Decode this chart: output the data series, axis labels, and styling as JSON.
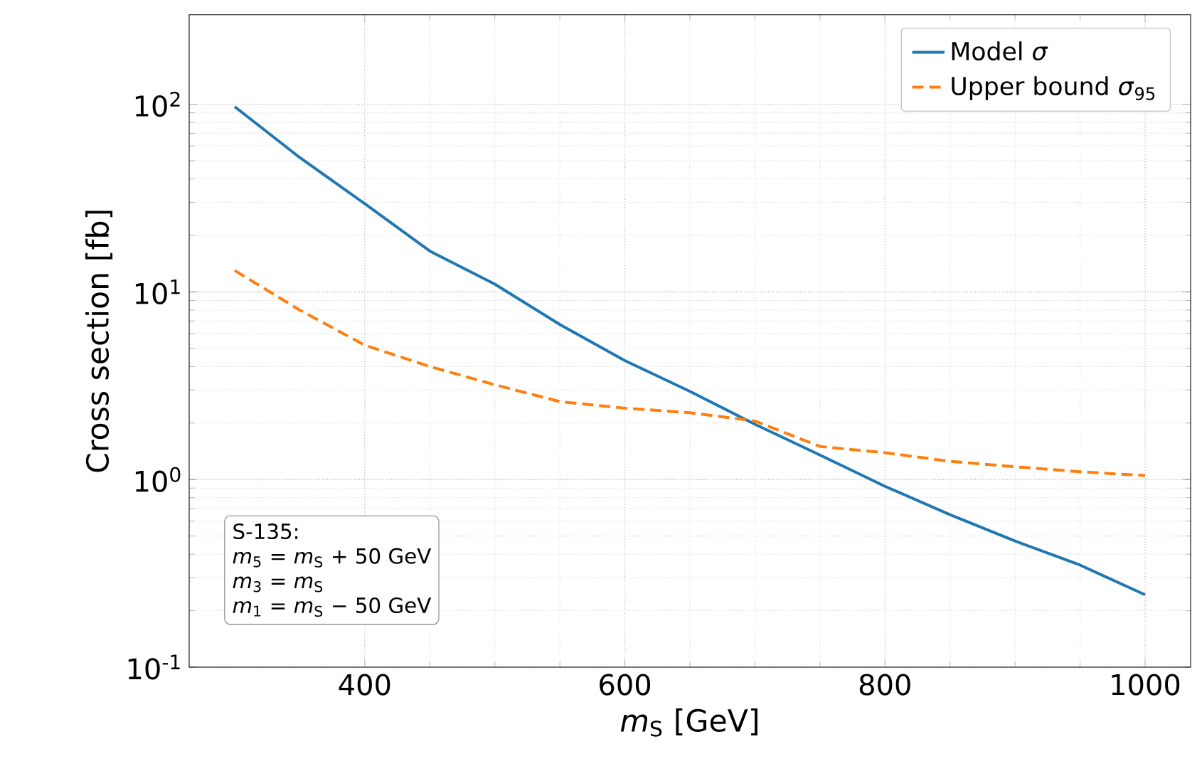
{
  "chart_data": {
    "type": "line",
    "xlabel": "*m*$_{S}$ [GeV]",
    "ylabel": "Cross section [fb]",
    "x": [
      300,
      350,
      400,
      450,
      500,
      550,
      600,
      650,
      700,
      750,
      800,
      850,
      900,
      950,
      1000
    ],
    "series": [
      {
        "name": "Model *σ*",
        "color": "#1f77b4",
        "line_style": "solid",
        "values": [
          97,
          52,
          29.5,
          16.5,
          11,
          6.7,
          4.3,
          2.95,
          1.97,
          1.35,
          0.92,
          0.65,
          0.47,
          0.35,
          0.243
        ]
      },
      {
        "name": "Upper bound *σ*$_{95}$",
        "color": "#ff7f0e",
        "line_style": "dashed",
        "values": [
          13,
          8,
          5.2,
          4,
          3.2,
          2.6,
          2.4,
          2.27,
          2.05,
          1.5,
          1.39,
          1.25,
          1.17,
          1.1,
          1.05
        ]
      }
    ],
    "log": "y",
    "xlim": [
      265,
      1035
    ],
    "ylim": [
      0.1,
      300
    ],
    "xticks": [
      400,
      600,
      800,
      1000
    ],
    "yticks": [
      {
        "value": 0.1,
        "label": "10$^{-1}$"
      },
      {
        "value": 1,
        "label": "10$^{0}$"
      },
      {
        "value": 10,
        "label": "10$^{1}$"
      },
      {
        "value": 100,
        "label": "10$^{2}$"
      }
    ],
    "grid": true,
    "legend": "top right",
    "annotations": [
      "S-135:",
      "*m*$_{5}$ = *m*$_{S}$ + 50 GeV",
      "*m*$_{3}$ = *m*$_{S}$",
      "*m*$_{1}$ = *m*$_{S}$ − 50 GeV"
    ]
  }
}
